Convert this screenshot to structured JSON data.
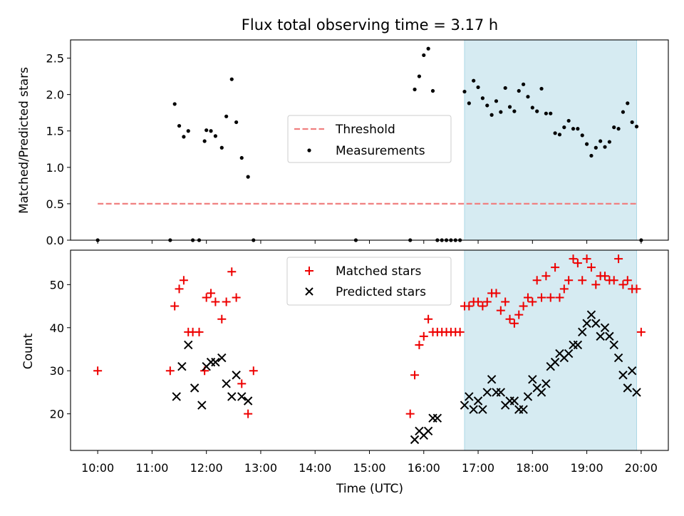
{
  "title": "Flux total observing time = 3.17 h",
  "xlabel": "Time (UTC)",
  "x_ticks": [
    "10:00",
    "11:00",
    "12:00",
    "13:00",
    "14:00",
    "15:00",
    "16:00",
    "17:00",
    "18:00",
    "19:00",
    "20:00"
  ],
  "colors": {
    "threshold": "#f08080",
    "matched": "#ee0000",
    "predicted": "#000000",
    "shade": "#add8e6"
  },
  "chart_data": [
    {
      "type": "scatter",
      "ylabel": "Matched/Predicted stars",
      "xlim": [
        "09:30",
        "20:30"
      ],
      "ylim": [
        0,
        2.75
      ],
      "y_ticks": [
        "0.0",
        "0.5",
        "1.0",
        "1.5",
        "2.0",
        "2.5"
      ],
      "shaded_span": [
        "16:45",
        "19:55"
      ],
      "legend": {
        "position": "center",
        "entries": [
          "Threshold",
          "Measurements"
        ]
      },
      "threshold": {
        "name": "Threshold",
        "value": 0.5,
        "x_range": [
          "10:00",
          "19:55"
        ]
      },
      "series": [
        {
          "name": "Measurements",
          "x": [
            "10:00",
            "11:20",
            "11:25",
            "11:30",
            "11:35",
            "11:40",
            "11:45",
            "11:52",
            "11:58",
            "12:00",
            "12:05",
            "12:10",
            "12:17",
            "12:22",
            "12:28",
            "12:33",
            "12:39",
            "12:46",
            "12:52",
            "14:45",
            "15:45",
            "15:50",
            "15:55",
            "16:00",
            "16:05",
            "16:10",
            "16:15",
            "16:20",
            "16:25",
            "16:30",
            "16:35",
            "16:40",
            "16:45",
            "16:50",
            "16:55",
            "17:00",
            "17:05",
            "17:10",
            "17:15",
            "17:20",
            "17:25",
            "17:30",
            "17:35",
            "17:40",
            "17:45",
            "17:50",
            "17:55",
            "18:00",
            "18:05",
            "18:10",
            "18:15",
            "18:20",
            "18:25",
            "18:30",
            "18:35",
            "18:40",
            "18:45",
            "18:50",
            "18:55",
            "19:00",
            "19:05",
            "19:10",
            "19:15",
            "19:20",
            "19:25",
            "19:30",
            "19:35",
            "19:40",
            "19:45",
            "19:50",
            "19:55",
            "20:00"
          ],
          "y": [
            0.0,
            0.0,
            1.87,
            1.57,
            1.42,
            1.5,
            0.0,
            0.0,
            1.36,
            1.51,
            1.5,
            1.43,
            1.27,
            1.7,
            2.21,
            1.62,
            1.13,
            0.87,
            0.0,
            0.0,
            0.0,
            2.07,
            2.25,
            2.54,
            2.63,
            2.05,
            0.0,
            0.0,
            0.0,
            0.0,
            0.0,
            0.0,
            2.04,
            1.88,
            2.19,
            2.1,
            1.95,
            1.85,
            1.72,
            1.91,
            1.76,
            2.09,
            1.83,
            1.77,
            2.05,
            2.14,
            1.97,
            1.82,
            1.77,
            2.08,
            1.74,
            1.74,
            1.47,
            1.45,
            1.55,
            1.64,
            1.53,
            1.53,
            1.44,
            1.32,
            1.16,
            1.27,
            1.36,
            1.28,
            1.35,
            1.55,
            1.53,
            1.76,
            1.88,
            1.62,
            1.56,
            0.0
          ]
        }
      ]
    },
    {
      "type": "scatter",
      "ylabel": "Count",
      "xlim": [
        "09:30",
        "20:30"
      ],
      "ylim": [
        11.5,
        58
      ],
      "y_ticks": [
        "20",
        "30",
        "40",
        "50"
      ],
      "shaded_span": [
        "16:45",
        "19:55"
      ],
      "legend": {
        "position": "top-center",
        "entries": [
          "Matched stars",
          "Predicted stars"
        ]
      },
      "series": [
        {
          "name": "Matched stars",
          "marker": "plus",
          "x": [
            "10:00",
            "11:20",
            "11:25",
            "11:30",
            "11:35",
            "11:40",
            "11:45",
            "11:52",
            "11:58",
            "12:00",
            "12:05",
            "12:10",
            "12:17",
            "12:22",
            "12:28",
            "12:33",
            "12:39",
            "12:46",
            "12:52",
            "15:45",
            "15:50",
            "15:55",
            "16:00",
            "16:05",
            "16:10",
            "16:15",
            "16:20",
            "16:25",
            "16:30",
            "16:35",
            "16:40",
            "16:45",
            "16:50",
            "16:55",
            "17:00",
            "17:05",
            "17:10",
            "17:15",
            "17:20",
            "17:25",
            "17:30",
            "17:35",
            "17:40",
            "17:45",
            "17:50",
            "17:55",
            "18:00",
            "18:05",
            "18:10",
            "18:15",
            "18:20",
            "18:25",
            "18:30",
            "18:35",
            "18:40",
            "18:45",
            "18:50",
            "18:55",
            "19:00",
            "19:05",
            "19:10",
            "19:15",
            "19:20",
            "19:25",
            "19:30",
            "19:35",
            "19:40",
            "19:45",
            "19:50",
            "19:55",
            "20:00"
          ],
          "y": [
            30,
            30,
            45,
            49,
            51,
            39,
            39,
            39,
            30,
            47,
            48,
            46,
            42,
            46,
            53,
            47,
            27,
            20,
            30,
            20,
            29,
            36,
            38,
            42,
            39,
            39,
            39,
            39,
            39,
            39,
            39,
            45,
            45,
            46,
            46,
            45,
            46,
            48,
            48,
            44,
            46,
            42,
            41,
            43,
            45,
            47,
            46,
            51,
            47,
            52,
            47,
            54,
            47,
            49,
            51,
            56,
            55,
            51,
            56,
            54,
            50,
            52,
            52,
            51,
            51,
            56,
            50,
            51,
            49,
            49,
            39
          ]
        },
        {
          "name": "Predicted stars",
          "marker": "x",
          "x": [
            "11:27",
            "11:33",
            "11:40",
            "11:47",
            "11:55",
            "12:00",
            "12:05",
            "12:10",
            "12:17",
            "12:22",
            "12:28",
            "12:33",
            "12:39",
            "12:46",
            "15:50",
            "15:55",
            "16:00",
            "16:05",
            "16:10",
            "16:15",
            "16:45",
            "16:50",
            "16:55",
            "17:00",
            "17:05",
            "17:10",
            "17:15",
            "17:20",
            "17:25",
            "17:30",
            "17:35",
            "17:40",
            "17:45",
            "17:50",
            "17:55",
            "18:00",
            "18:05",
            "18:10",
            "18:15",
            "18:20",
            "18:25",
            "18:30",
            "18:35",
            "18:40",
            "18:45",
            "18:50",
            "18:55",
            "19:00",
            "19:05",
            "19:10",
            "19:15",
            "19:20",
            "19:25",
            "19:30",
            "19:35",
            "19:40",
            "19:45",
            "19:50",
            "19:55"
          ],
          "y": [
            24,
            31,
            36,
            26,
            22,
            31,
            32,
            32,
            33,
            27,
            24,
            29,
            24,
            23,
            14,
            16,
            15,
            16,
            19,
            19,
            22,
            24,
            21,
            23,
            21,
            25,
            28,
            25,
            25,
            22,
            23,
            23,
            21,
            21,
            24,
            28,
            26,
            25,
            27,
            31,
            32,
            34,
            33,
            34,
            36,
            36,
            39,
            41,
            43,
            41,
            38,
            40,
            38,
            36,
            33,
            29,
            26,
            30,
            25
          ]
        }
      ]
    }
  ]
}
